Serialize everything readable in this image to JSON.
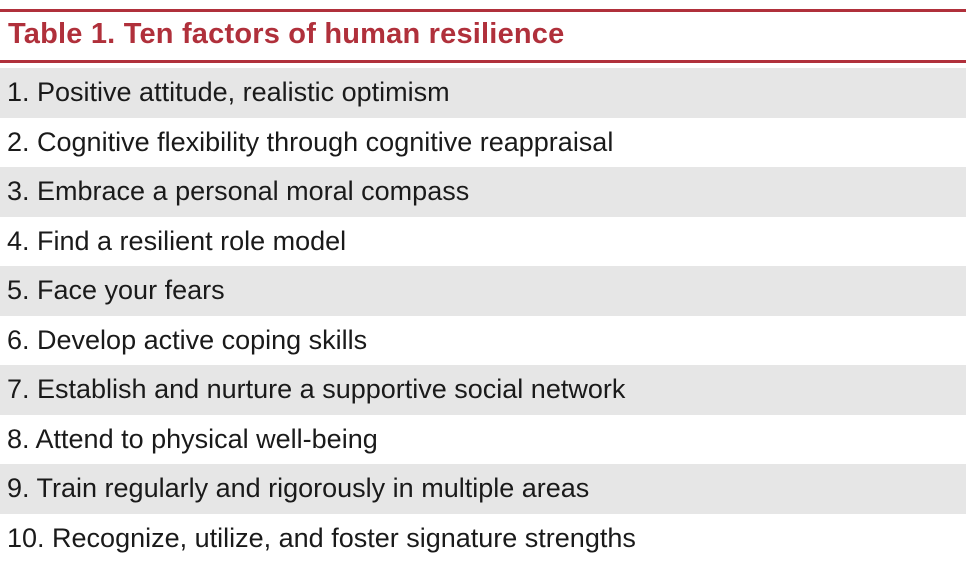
{
  "table": {
    "title": "Table 1.  Ten factors of human resilience",
    "rows": [
      "1. Positive attitude, realistic optimism",
      "2. Cognitive flexibility through cognitive reappraisal",
      "3. Embrace a personal moral compass",
      "4. Find a resilient role model",
      "5. Face your fears",
      "6. Develop active coping skills",
      "7. Establish and nurture a supportive social network",
      "8. Attend to physical well-being",
      "9. Train regularly and rigorously in multiple areas",
      "10. Recognize, utilize, and foster signature strengths"
    ]
  },
  "colors": {
    "accent": "#b0303b",
    "row_shade": "#e6e6e6",
    "text": "#1a1a1a"
  }
}
